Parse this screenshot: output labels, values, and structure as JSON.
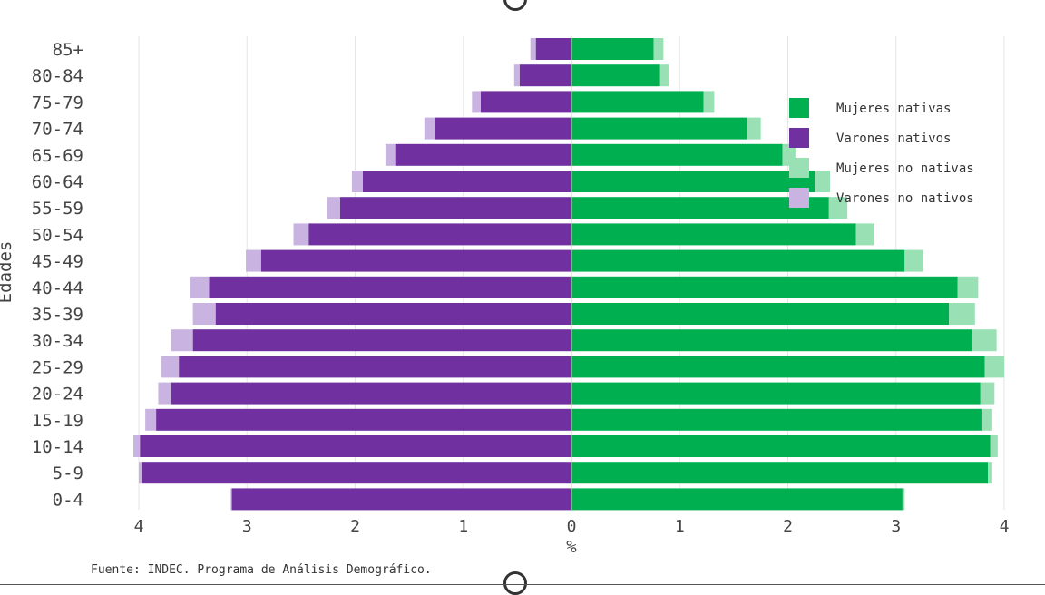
{
  "chart_data": {
    "type": "bar",
    "orientation": "horizontal-population-pyramid",
    "title": "",
    "xlabel": "%",
    "ylabel": "Edades",
    "xlim": [
      -4,
      4
    ],
    "x_ticks": [
      {
        "value": -4,
        "label": "4"
      },
      {
        "value": -3,
        "label": "3"
      },
      {
        "value": -2,
        "label": "2"
      },
      {
        "value": -1,
        "label": "1"
      },
      {
        "value": 0,
        "label": "0"
      },
      {
        "value": 1,
        "label": "1"
      },
      {
        "value": 2,
        "label": "2"
      },
      {
        "value": 3,
        "label": "3"
      },
      {
        "value": 4,
        "label": "4"
      }
    ],
    "categories": [
      "0-4",
      "5-9",
      "10-14",
      "15-19",
      "20-24",
      "25-29",
      "30-34",
      "35-39",
      "40-44",
      "45-49",
      "50-54",
      "55-59",
      "60-64",
      "65-69",
      "70-74",
      "75-79",
      "80-84",
      "85+"
    ],
    "series": [
      {
        "name": "Mujeres nativas",
        "color": "#00b050",
        "side": "right",
        "values": [
          3.06,
          3.85,
          3.87,
          3.79,
          3.78,
          3.82,
          3.7,
          3.49,
          3.57,
          3.08,
          2.63,
          2.38,
          2.25,
          1.95,
          1.62,
          1.22,
          0.82,
          0.76
        ]
      },
      {
        "name": "Varones nativos",
        "color": "#7030a0",
        "side": "left",
        "values": [
          3.14,
          3.97,
          3.99,
          3.84,
          3.7,
          3.63,
          3.5,
          3.29,
          3.35,
          2.87,
          2.43,
          2.14,
          1.93,
          1.63,
          1.26,
          0.84,
          0.48,
          0.33
        ]
      },
      {
        "name": "Mujeres no nativas",
        "color": "#99e0b5",
        "side": "right",
        "values": [
          0.02,
          0.04,
          0.07,
          0.1,
          0.13,
          0.18,
          0.23,
          0.24,
          0.19,
          0.17,
          0.17,
          0.17,
          0.14,
          0.12,
          0.13,
          0.1,
          0.08,
          0.09
        ]
      },
      {
        "name": "Varones no nativos",
        "color": "#c9b3e0",
        "side": "left",
        "values": [
          0.01,
          0.03,
          0.06,
          0.1,
          0.12,
          0.16,
          0.2,
          0.21,
          0.18,
          0.14,
          0.14,
          0.12,
          0.1,
          0.09,
          0.1,
          0.08,
          0.05,
          0.05
        ]
      }
    ],
    "legend": [
      {
        "label": "Mujeres nativas",
        "color": "#00b050"
      },
      {
        "label": "Varones nativos",
        "color": "#7030a0"
      },
      {
        "label": "Mujeres no nativas",
        "color": "#99e0b5"
      },
      {
        "label": "Varones no nativos",
        "color": "#c9b3e0"
      }
    ],
    "legend_position": "right",
    "grid": "vertical"
  },
  "source_text": "Fuente: INDEC. Programa de Análisis Demográfico."
}
